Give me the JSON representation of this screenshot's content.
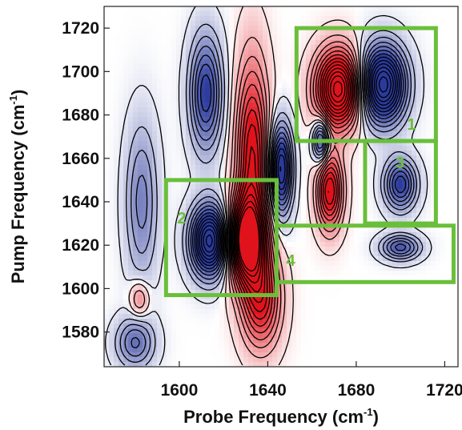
{
  "chart_data": {
    "type": "heatmap",
    "subtype": "2D-IR spectrum with contour lines",
    "xlabel": "Probe Frequency (cm",
    "xlabel_sup": "-1",
    "xlabel_close": ")",
    "ylabel": "Pump Frequency (cm",
    "ylabel_sup": "-1",
    "ylabel_close": ")",
    "xlim": [
      1566,
      1726
    ],
    "ylim": [
      1564,
      1730
    ],
    "x_ticks": [
      1600,
      1640,
      1680,
      1720
    ],
    "y_ticks": [
      1580,
      1600,
      1620,
      1640,
      1660,
      1680,
      1700,
      1720
    ],
    "x_tick_labels": [
      "1600",
      "1640",
      "1680",
      "1720"
    ],
    "y_tick_labels": [
      "1580",
      "1600",
      "1620",
      "1640",
      "1660",
      "1680",
      "1700",
      "1720"
    ],
    "colormap": {
      "negative": "#2b3a9c",
      "zero": "#ffffff",
      "positive": "#e0121b"
    },
    "contour_color": "#000000",
    "peaks": [
      {
        "sign": "negative",
        "x": 1614,
        "y": 1622,
        "sx": 6,
        "sy": 11,
        "amp": 1.0
      },
      {
        "sign": "positive",
        "x": 1630,
        "y": 1622,
        "sx": 6,
        "sy": 13,
        "amp": 1.0
      },
      {
        "sign": "positive",
        "x": 1633,
        "y": 1660,
        "sx": 5,
        "sy": 30,
        "amp": 0.65
      },
      {
        "sign": "positive",
        "x": 1637,
        "y": 1595,
        "sx": 6,
        "sy": 15,
        "amp": 0.55
      },
      {
        "sign": "negative",
        "x": 1646,
        "y": 1655,
        "sx": 3.5,
        "sy": 14,
        "amp": 0.75
      },
      {
        "sign": "negative",
        "x": 1664,
        "y": 1668,
        "sx": 2.5,
        "sy": 7,
        "amp": 0.55
      },
      {
        "sign": "positive",
        "x": 1672,
        "y": 1692,
        "sx": 7,
        "sy": 12,
        "amp": 1.0
      },
      {
        "sign": "negative",
        "x": 1692,
        "y": 1694,
        "sx": 7,
        "sy": 12,
        "amp": 1.0
      },
      {
        "sign": "positive",
        "x": 1668,
        "y": 1645,
        "sx": 4,
        "sy": 12,
        "amp": 0.65
      },
      {
        "sign": "negative",
        "x": 1700,
        "y": 1648,
        "sx": 5,
        "sy": 8,
        "amp": 0.55
      },
      {
        "sign": "negative",
        "x": 1700,
        "y": 1619,
        "sx": 6,
        "sy": 4,
        "amp": 0.45
      },
      {
        "sign": "negative",
        "x": 1612,
        "y": 1690,
        "sx": 5,
        "sy": 18,
        "amp": 0.55
      },
      {
        "sign": "negative",
        "x": 1583,
        "y": 1640,
        "sx": 5,
        "sy": 25,
        "amp": 0.3
      },
      {
        "sign": "negative",
        "x": 1580,
        "y": 1575,
        "sx": 6,
        "sy": 8,
        "amp": 0.35
      },
      {
        "sign": "positive",
        "x": 1582,
        "y": 1595,
        "sx": 3,
        "sy": 6,
        "amp": 0.25
      }
    ],
    "regions": [
      {
        "label": "1",
        "x_range": [
          1653,
          1716
        ],
        "y_range": [
          1668,
          1720
        ]
      },
      {
        "label": "2",
        "x_range": [
          1594,
          1644
        ],
        "y_range": [
          1597,
          1650
        ]
      },
      {
        "label": "3",
        "x_range": [
          1684,
          1716
        ],
        "y_range": [
          1630,
          1668
        ]
      },
      {
        "label": "4",
        "x_range": [
          1644,
          1724
        ],
        "y_range": [
          1603,
          1629
        ]
      }
    ],
    "region_color": "#6abf3a",
    "region_label_color": "#6abf3a"
  }
}
